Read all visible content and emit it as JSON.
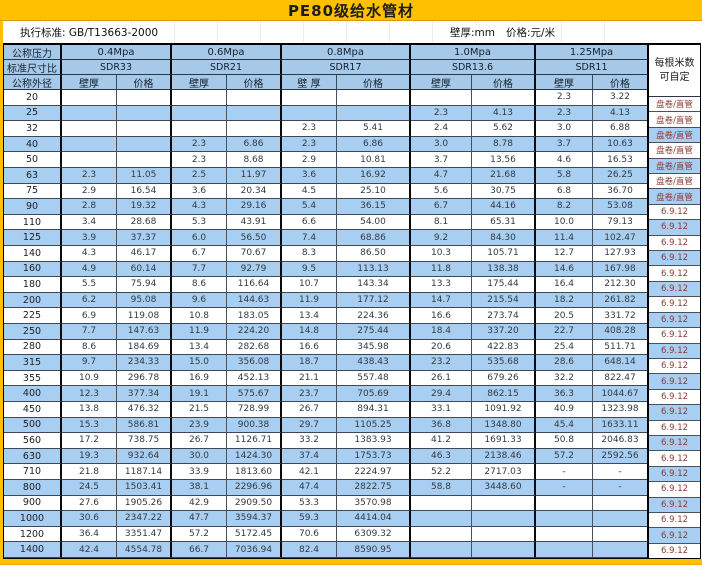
{
  "title": "PE80级给水管材",
  "info": {
    "standard": "执行标准: GB/T13663-2000",
    "wall_unit": "壁厚:mm",
    "price_unit": "价格:元/米"
  },
  "header": {
    "pressure_label": "公称压力",
    "sdr_label": "标准尺寸比",
    "diameter_label": "公称外径",
    "length_header_line1": "每根米数",
    "length_header_line2": "可自定",
    "groups": [
      {
        "pressure": "0.4Mpa",
        "sdr": "SDR33",
        "wall_label": "壁厚",
        "price_label": "价格"
      },
      {
        "pressure": "0.6Mpa",
        "sdr": "SDR21",
        "wall_label": "壁厚",
        "price_label": "价格"
      },
      {
        "pressure": "0.8Mpa",
        "sdr": "SDR17",
        "wall_label": "壁 厚",
        "price_label": "价格"
      },
      {
        "pressure": "1.0Mpa",
        "sdr": "SDR13.6",
        "wall_label": "壁厚",
        "price_label": "价格"
      },
      {
        "pressure": "1.25Mpa",
        "sdr": "SDR11",
        "wall_label": "壁厚",
        "price_label": "价格"
      }
    ]
  },
  "table": {
    "rows": [
      {
        "dn": "20",
        "cells": [
          "",
          "",
          "",
          "",
          "",
          "",
          "",
          "",
          "2.3",
          "3.22"
        ],
        "length": "盘卷/直管"
      },
      {
        "dn": "25",
        "cells": [
          "",
          "",
          "",
          "",
          "",
          "",
          "2.3",
          "4.13",
          "2.3",
          "4.13"
        ],
        "length": "盘卷/直管"
      },
      {
        "dn": "32",
        "cells": [
          "",
          "",
          "",
          "",
          "2.3",
          "5.41",
          "2.4",
          "5.62",
          "3.0",
          "6.88"
        ],
        "length": "盘卷/直管"
      },
      {
        "dn": "40",
        "cells": [
          "",
          "",
          "2.3",
          "6.86",
          "2.3",
          "6.86",
          "3.0",
          "8.78",
          "3.7",
          "10.63"
        ],
        "length": "盘卷/直管"
      },
      {
        "dn": "50",
        "cells": [
          "",
          "",
          "2.3",
          "8.68",
          "2.9",
          "10.81",
          "3.7",
          "13.56",
          "4.6",
          "16.53"
        ],
        "length": "盘卷/直管"
      },
      {
        "dn": "63",
        "cells": [
          "2.3",
          "11.05",
          "2.5",
          "11.97",
          "3.6",
          "16.92",
          "4.7",
          "21.68",
          "5.8",
          "26.25"
        ],
        "length": "盘卷/直管"
      },
      {
        "dn": "75",
        "cells": [
          "2.9",
          "16.54",
          "3.6",
          "20.34",
          "4.5",
          "25.10",
          "5.6",
          "30.75",
          "6.8",
          "36.70"
        ],
        "length": "盘卷/直管"
      },
      {
        "dn": "90",
        "cells": [
          "2.8",
          "19.32",
          "4.3",
          "29.16",
          "5.4",
          "36.15",
          "6.7",
          "44.16",
          "8.2",
          "53.08"
        ],
        "length": "6.9.12"
      },
      {
        "dn": "110",
        "cells": [
          "3.4",
          "28.68",
          "5.3",
          "43.91",
          "6.6",
          "54.00",
          "8.1",
          "65.31",
          "10.0",
          "79.13"
        ],
        "length": "6.9.12"
      },
      {
        "dn": "125",
        "cells": [
          "3.9",
          "37.37",
          "6.0",
          "56.50",
          "7.4",
          "68.86",
          "9.2",
          "84.30",
          "11.4",
          "102.47"
        ],
        "length": "6.9.12"
      },
      {
        "dn": "140",
        "cells": [
          "4.3",
          "46.17",
          "6.7",
          "70.67",
          "8.3",
          "86.50",
          "10.3",
          "105.71",
          "12.7",
          "127.93"
        ],
        "length": "6.9.12"
      },
      {
        "dn": "160",
        "cells": [
          "4.9",
          "60.14",
          "7.7",
          "92.79",
          "9.5",
          "113.13",
          "11.8",
          "138.38",
          "14.6",
          "167.98"
        ],
        "length": "6.9.12"
      },
      {
        "dn": "180",
        "cells": [
          "5.5",
          "75.94",
          "8.6",
          "116.64",
          "10.7",
          "143.34",
          "13.3",
          "175.44",
          "16.4",
          "212.30"
        ],
        "length": "6.9.12"
      },
      {
        "dn": "200",
        "cells": [
          "6.2",
          "95.08",
          "9.6",
          "144.63",
          "11.9",
          "177.12",
          "14.7",
          "215.54",
          "18.2",
          "261.82"
        ],
        "length": "6.9.12"
      },
      {
        "dn": "225",
        "cells": [
          "6.9",
          "119.08",
          "10.8",
          "183.05",
          "13.4",
          "224.36",
          "16.6",
          "273.74",
          "20.5",
          "331.72"
        ],
        "length": "6.9.12"
      },
      {
        "dn": "250",
        "cells": [
          "7.7",
          "147.63",
          "11.9",
          "224.20",
          "14.8",
          "275.44",
          "18.4",
          "337.20",
          "22.7",
          "408.28"
        ],
        "length": "6.9.12"
      },
      {
        "dn": "280",
        "cells": [
          "8.6",
          "184.69",
          "13.4",
          "282.68",
          "16.6",
          "345.98",
          "20.6",
          "422.83",
          "25.4",
          "511.71"
        ],
        "length": "6.9.12"
      },
      {
        "dn": "315",
        "cells": [
          "9.7",
          "234.33",
          "15.0",
          "356.08",
          "18.7",
          "438.43",
          "23.2",
          "535.68",
          "28.6",
          "648.14"
        ],
        "length": "6.9.12"
      },
      {
        "dn": "355",
        "cells": [
          "10.9",
          "296.78",
          "16.9",
          "452.13",
          "21.1",
          "557.48",
          "26.1",
          "679.26",
          "32.2",
          "822.47"
        ],
        "length": "6.9.12"
      },
      {
        "dn": "400",
        "cells": [
          "12.3",
          "377.34",
          "19.1",
          "575.67",
          "23.7",
          "705.69",
          "29.4",
          "862.15",
          "36.3",
          "1044.67"
        ],
        "length": "6.9.12"
      },
      {
        "dn": "450",
        "cells": [
          "13.8",
          "476.32",
          "21.5",
          "728.99",
          "26.7",
          "894.31",
          "33.1",
          "1091.92",
          "40.9",
          "1323.98"
        ],
        "length": "6.9.12"
      },
      {
        "dn": "500",
        "cells": [
          "15.3",
          "586.81",
          "23.9",
          "900.38",
          "29.7",
          "1105.25",
          "36.8",
          "1348.80",
          "45.4",
          "1633.11"
        ],
        "length": "6.9.12"
      },
      {
        "dn": "560",
        "cells": [
          "17.2",
          "738.75",
          "26.7",
          "1126.71",
          "33.2",
          "1383.93",
          "41.2",
          "1691.33",
          "50.8",
          "2046.83"
        ],
        "length": "6.9.12"
      },
      {
        "dn": "630",
        "cells": [
          "19.3",
          "932.64",
          "30.0",
          "1424.30",
          "37.4",
          "1753.73",
          "46.3",
          "2138.46",
          "57.2",
          "2592.56"
        ],
        "length": "6.9.12"
      },
      {
        "dn": "710",
        "cells": [
          "21.8",
          "1187.14",
          "33.9",
          "1813.60",
          "42.1",
          "2224.97",
          "52.2",
          "2717.03",
          "-",
          "-"
        ],
        "length": "6.9.12"
      },
      {
        "dn": "800",
        "cells": [
          "24.5",
          "1503.41",
          "38.1",
          "2296.96",
          "47.4",
          "2822.75",
          "58.8",
          "3448.60",
          "-",
          "-"
        ],
        "length": "6.9.12"
      },
      {
        "dn": "900",
        "cells": [
          "27.6",
          "1905.26",
          "42.9",
          "2909.50",
          "53.3",
          "3570.98",
          "",
          "",
          "",
          ""
        ],
        "length": "6.9.12"
      },
      {
        "dn": "1000",
        "cells": [
          "30.6",
          "2347.22",
          "47.7",
          "3594.37",
          "59.3",
          "4414.04",
          "",
          "",
          "",
          ""
        ],
        "length": "6.9.12"
      },
      {
        "dn": "1200",
        "cells": [
          "36.4",
          "3351.47",
          "57.2",
          "5172.45",
          "70.6",
          "6309.32",
          "",
          "",
          "",
          ""
        ],
        "length": "6.9.12"
      },
      {
        "dn": "1400",
        "cells": [
          "42.4",
          "4554.78",
          "66.7",
          "7036.94",
          "82.4",
          "8590.95",
          "",
          "",
          "",
          ""
        ],
        "length": "6.9.12"
      }
    ]
  },
  "colors": {
    "accent_gold": "#FFC000",
    "header_blue": "#A6C9EA",
    "row_blue": "#A8CEF2",
    "length_text": "#8B3A32",
    "grid_line": "#3C4856"
  }
}
